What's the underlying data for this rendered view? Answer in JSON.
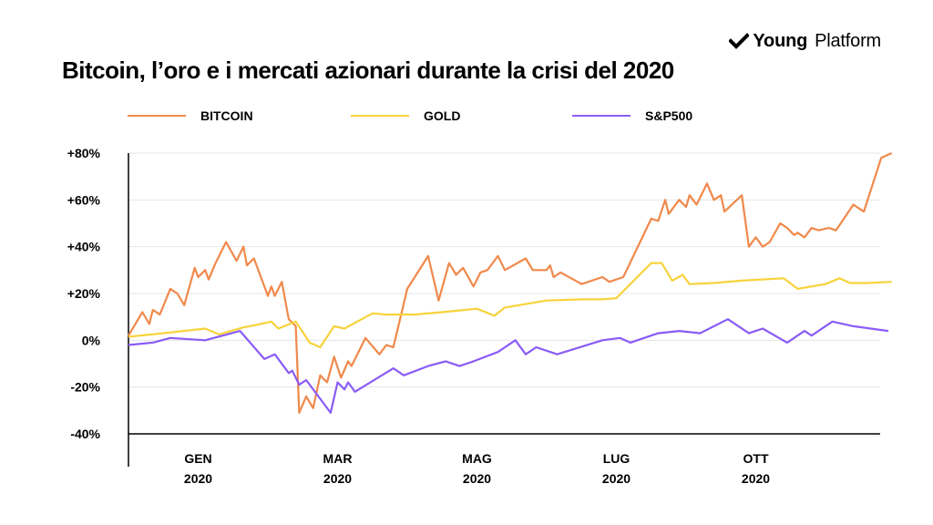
{
  "brand": {
    "word1": "Young",
    "word2": "Platform"
  },
  "colors": {
    "bitcoin": "#f0894b",
    "gold": "#f7d33b",
    "sp500": "#8a5cf6",
    "grid": "#e5e5e5",
    "axis": "#000000"
  },
  "chart_data": {
    "type": "line",
    "title": "Bitcoin, l’oro e i mercati azionari durante la crisi del 2020",
    "legend_position": "top",
    "grid": true,
    "xlabel": "",
    "ylabel": "",
    "ylim": [
      -40,
      80
    ],
    "y_ticks": [
      80,
      60,
      40,
      20,
      0,
      -20,
      -40
    ],
    "y_tick_labels": [
      "+80%",
      "+60%",
      "+40%",
      "+20%",
      "0%",
      "-20%",
      "-40%"
    ],
    "xlim": [
      0,
      11.5
    ],
    "x_ticks": [
      {
        "x": 1,
        "labels": [
          "GEN",
          "2020"
        ]
      },
      {
        "x": 3,
        "labels": [
          "MAR",
          "2020"
        ]
      },
      {
        "x": 5,
        "labels": [
          "MAG",
          "2020"
        ]
      },
      {
        "x": 7,
        "labels": [
          "LUG",
          "2020"
        ]
      },
      {
        "x": 9,
        "labels": [
          "OTT",
          "2020"
        ]
      }
    ],
    "series": [
      {
        "name": "BITCOIN",
        "color": "#f0894b",
        "points": [
          [
            0,
            2
          ],
          [
            0.2,
            12
          ],
          [
            0.3,
            7
          ],
          [
            0.35,
            13
          ],
          [
            0.45,
            11
          ],
          [
            0.6,
            22
          ],
          [
            0.7,
            20
          ],
          [
            0.8,
            15
          ],
          [
            0.95,
            31
          ],
          [
            1.0,
            27
          ],
          [
            1.1,
            30
          ],
          [
            1.15,
            26
          ],
          [
            1.25,
            33
          ],
          [
            1.4,
            42
          ],
          [
            1.55,
            34
          ],
          [
            1.65,
            40
          ],
          [
            1.7,
            32
          ],
          [
            1.8,
            35
          ],
          [
            2.0,
            19
          ],
          [
            2.05,
            23
          ],
          [
            2.1,
            19
          ],
          [
            2.2,
            25
          ],
          [
            2.3,
            9
          ],
          [
            2.4,
            6
          ],
          [
            2.45,
            -31
          ],
          [
            2.55,
            -24
          ],
          [
            2.65,
            -29
          ],
          [
            2.75,
            -15
          ],
          [
            2.85,
            -18
          ],
          [
            2.95,
            -7
          ],
          [
            3.05,
            -16
          ],
          [
            3.15,
            -9
          ],
          [
            3.2,
            -11
          ],
          [
            3.4,
            1
          ],
          [
            3.6,
            -6
          ],
          [
            3.7,
            -2
          ],
          [
            3.8,
            -3
          ],
          [
            4.0,
            22
          ],
          [
            4.3,
            36
          ],
          [
            4.45,
            17
          ],
          [
            4.6,
            33
          ],
          [
            4.7,
            28
          ],
          [
            4.8,
            31
          ],
          [
            4.95,
            23
          ],
          [
            5.05,
            29
          ],
          [
            5.15,
            30
          ],
          [
            5.3,
            36
          ],
          [
            5.4,
            30
          ],
          [
            5.7,
            35
          ],
          [
            5.8,
            30
          ],
          [
            6.0,
            30
          ],
          [
            6.05,
            32
          ],
          [
            6.1,
            27
          ],
          [
            6.2,
            29
          ],
          [
            6.5,
            24
          ],
          [
            6.8,
            27
          ],
          [
            6.9,
            25
          ],
          [
            7.1,
            27
          ],
          [
            7.5,
            52
          ],
          [
            7.6,
            51
          ],
          [
            7.7,
            60
          ],
          [
            7.75,
            54
          ],
          [
            7.9,
            60
          ],
          [
            8.0,
            57
          ],
          [
            8.05,
            62
          ],
          [
            8.15,
            58
          ],
          [
            8.3,
            67
          ],
          [
            8.4,
            60
          ],
          [
            8.5,
            62
          ],
          [
            8.55,
            55
          ],
          [
            8.8,
            62
          ],
          [
            8.9,
            40
          ],
          [
            9.0,
            44
          ],
          [
            9.1,
            40
          ],
          [
            9.2,
            42
          ],
          [
            9.35,
            50
          ],
          [
            9.45,
            48
          ],
          [
            9.55,
            45
          ],
          [
            9.6,
            46
          ],
          [
            9.7,
            44
          ],
          [
            9.8,
            48
          ],
          [
            9.9,
            47
          ],
          [
            10.05,
            48
          ],
          [
            10.15,
            47
          ],
          [
            10.4,
            58
          ],
          [
            10.55,
            55
          ],
          [
            10.8,
            78
          ],
          [
            10.95,
            80
          ]
        ]
      },
      {
        "name": "GOLD",
        "color": "#f7d33b",
        "points": [
          [
            0,
            1.5
          ],
          [
            0.5,
            3
          ],
          [
            1.1,
            5
          ],
          [
            1.3,
            2.5
          ],
          [
            1.65,
            5.5
          ],
          [
            1.9,
            7
          ],
          [
            2.05,
            8
          ],
          [
            2.15,
            5
          ],
          [
            2.4,
            8
          ],
          [
            2.6,
            -1
          ],
          [
            2.75,
            -3
          ],
          [
            2.95,
            6
          ],
          [
            3.1,
            5
          ],
          [
            3.5,
            11.5
          ],
          [
            3.7,
            11
          ],
          [
            4.1,
            11
          ],
          [
            4.5,
            12
          ],
          [
            5.0,
            13.5
          ],
          [
            5.25,
            10.5
          ],
          [
            5.4,
            14
          ],
          [
            6.0,
            17
          ],
          [
            6.5,
            17.5
          ],
          [
            6.8,
            17.5
          ],
          [
            7.0,
            18
          ],
          [
            7.5,
            33
          ],
          [
            7.65,
            33
          ],
          [
            7.8,
            25.5
          ],
          [
            7.95,
            28
          ],
          [
            8.05,
            24
          ],
          [
            8.4,
            24.5
          ],
          [
            8.8,
            25.5
          ],
          [
            9.4,
            26.5
          ],
          [
            9.6,
            22
          ],
          [
            10.0,
            24
          ],
          [
            10.2,
            26.5
          ],
          [
            10.35,
            24.5
          ],
          [
            10.6,
            24.5
          ],
          [
            10.95,
            25
          ]
        ]
      },
      {
        "name": "S&P500",
        "color": "#8a5cf6",
        "points": [
          [
            0,
            -2
          ],
          [
            0.35,
            -1
          ],
          [
            0.6,
            1
          ],
          [
            1.1,
            0
          ],
          [
            1.6,
            4
          ],
          [
            1.95,
            -8
          ],
          [
            2.1,
            -6
          ],
          [
            2.3,
            -14
          ],
          [
            2.35,
            -13
          ],
          [
            2.45,
            -19
          ],
          [
            2.55,
            -17
          ],
          [
            2.9,
            -31
          ],
          [
            3.0,
            -18
          ],
          [
            3.1,
            -21
          ],
          [
            3.15,
            -18
          ],
          [
            3.25,
            -22
          ],
          [
            3.8,
            -12
          ],
          [
            3.95,
            -15
          ],
          [
            4.3,
            -11
          ],
          [
            4.55,
            -9
          ],
          [
            4.75,
            -11
          ],
          [
            4.95,
            -9
          ],
          [
            5.3,
            -5
          ],
          [
            5.55,
            0
          ],
          [
            5.7,
            -6
          ],
          [
            5.85,
            -3
          ],
          [
            6.15,
            -6
          ],
          [
            6.8,
            0
          ],
          [
            7.05,
            1
          ],
          [
            7.2,
            -1
          ],
          [
            7.6,
            3
          ],
          [
            7.9,
            4
          ],
          [
            8.2,
            3
          ],
          [
            8.6,
            9
          ],
          [
            8.9,
            3
          ],
          [
            9.1,
            5
          ],
          [
            9.45,
            -1
          ],
          [
            9.7,
            4
          ],
          [
            9.8,
            2
          ],
          [
            10.1,
            8
          ],
          [
            10.4,
            6
          ],
          [
            10.9,
            4
          ]
        ]
      }
    ]
  }
}
